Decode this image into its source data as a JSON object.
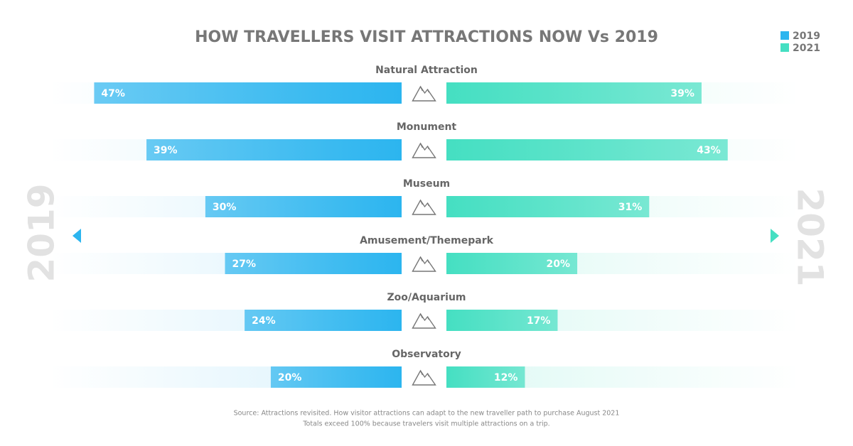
{
  "chart_data": {
    "type": "butterfly",
    "title": "HOW TRAVELLERS VISIT ATTRACTIONS NOW Vs 2019",
    "categories": [
      "Natural Attraction",
      "Monument",
      "Museum",
      "Amusement/Themepark",
      "Zoo/Aquarium",
      "Observatory"
    ],
    "series": [
      {
        "name": "2019",
        "color": "#2cb5ef",
        "values": [
          47,
          39,
          30,
          27,
          24,
          20
        ],
        "value_labels": [
          "47%",
          "39%",
          "30%",
          "27%",
          "24%",
          "20%"
        ]
      },
      {
        "name": "2021",
        "color": "#45dfc2",
        "values": [
          39,
          43,
          31,
          20,
          17,
          12
        ],
        "value_labels": [
          "39%",
          "43%",
          "31%",
          "20%",
          "17%",
          "12%"
        ]
      }
    ],
    "xlim": [
      0,
      54
    ],
    "legend": "top-right",
    "source": [
      "Source: Attractions revisited. How visitor attractions can adapt to the new traveller path to purchase August 2021",
      "Totals exceed 100% because travelers visit multiple attractions on a trip."
    ]
  }
}
